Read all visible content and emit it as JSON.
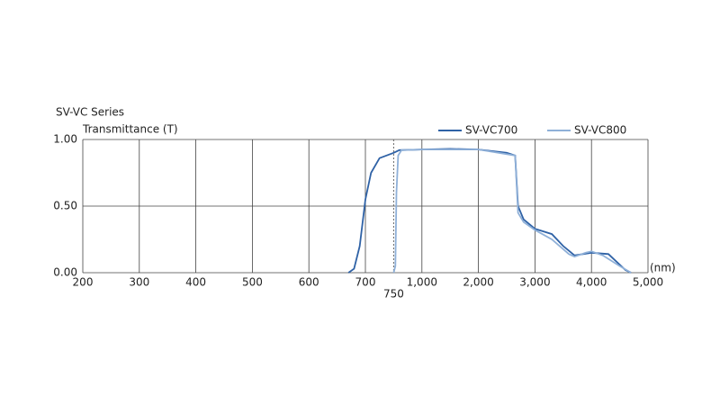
{
  "chart_data": {
    "type": "line",
    "title": "SV-VC Series",
    "y_label": "Transmittance (T)",
    "x_label": "(nm)",
    "ylim": [
      0,
      1
    ],
    "yticks": [
      {
        "value": 0,
        "label": "0.00"
      },
      {
        "value": 0.5,
        "label": "0.50"
      },
      {
        "value": 1,
        "label": "1.00"
      }
    ],
    "xlim": [
      200,
      5000
    ],
    "xticks": [
      200,
      300,
      400,
      500,
      600,
      700,
      {
        "value": 1000,
        "label": "1,000"
      },
      {
        "value": 2000,
        "label": "2,000"
      },
      {
        "value": 3000,
        "label": "3,000"
      },
      {
        "value": 4000,
        "label": "4,000"
      },
      {
        "value": 5000,
        "label": "5,000"
      }
    ],
    "xmarker": 750,
    "grid": true,
    "series": [
      {
        "name": "SV-VC700",
        "color": "#2f62a6",
        "x": [
          670,
          680,
          690,
          700,
          710,
          725,
          750,
          800,
          1000,
          1500,
          2000,
          2500,
          2650,
          2700,
          2800,
          3000,
          3300,
          3500,
          3700,
          4000,
          4300,
          4600,
          4700
        ],
        "values": [
          0,
          0.03,
          0.2,
          0.55,
          0.75,
          0.86,
          0.9,
          0.92,
          0.925,
          0.93,
          0.925,
          0.9,
          0.88,
          0.5,
          0.4,
          0.33,
          0.29,
          0.2,
          0.13,
          0.15,
          0.14,
          0.02,
          0
        ]
      },
      {
        "name": "SV-VC800",
        "color": "#8fb0d8",
        "x": [
          750,
          765,
          775,
          790,
          820,
          1000,
          2000,
          2650,
          2700,
          2800,
          3000,
          3300,
          3600,
          3700,
          3900,
          4000,
          4200,
          4500,
          4700
        ],
        "values": [
          0,
          0.05,
          0.6,
          0.88,
          0.92,
          0.925,
          0.925,
          0.88,
          0.45,
          0.38,
          0.32,
          0.25,
          0.14,
          0.12,
          0.15,
          0.16,
          0.13,
          0.05,
          0
        ]
      }
    ]
  }
}
